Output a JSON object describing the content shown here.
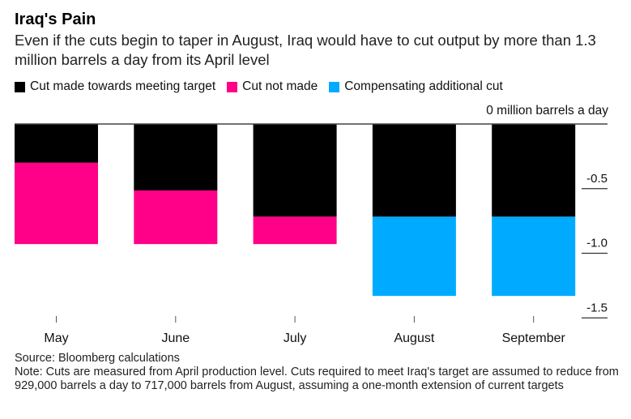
{
  "title": "Iraq's Pain",
  "subtitle": "Even if the cuts begin to taper in August, Iraq would have to cut output by more than 1.3 million barrels a day from its April level",
  "legend": [
    {
      "label": "Cut made towards meeting target",
      "color": "#000000"
    },
    {
      "label": "Cut not made",
      "color": "#ff0088"
    },
    {
      "label": "Compensating additional cut",
      "color": "#00aaff"
    }
  ],
  "source": "Source: Bloomberg calculations",
  "note": "Note: Cuts are measured from April production level. Cuts required to meet Iraq's target are assumed to reduce from 929,000 barrels a day to 717,000 barrels from August, assuming a one-month extension of current targets",
  "chart_data": {
    "type": "bar",
    "stacked": true,
    "orientation": "vertical-negative",
    "title": "Iraq's Pain",
    "ylabel": "0 million barrels a day",
    "ylim": [
      -1.5,
      0
    ],
    "yticks": [
      {
        "value": 0,
        "label": "0 million barrels a day"
      },
      {
        "value": -0.5,
        "label": "-0.5"
      },
      {
        "value": -1.0,
        "label": "-1.0"
      },
      {
        "value": -1.5,
        "label": "-1.5"
      }
    ],
    "categories": [
      "May",
      "June",
      "July",
      "August",
      "September"
    ],
    "series": [
      {
        "name": "Cut made towards meeting target",
        "color": "#000000",
        "values": [
          -0.3,
          -0.514,
          -0.717,
          -0.717,
          -0.717
        ]
      },
      {
        "name": "Cut not made",
        "color": "#ff0088",
        "values": [
          -0.629,
          -0.415,
          -0.212,
          0,
          0
        ]
      },
      {
        "name": "Compensating additional cut",
        "color": "#00aaff",
        "values": [
          0,
          0,
          0,
          -0.613,
          -0.613
        ]
      }
    ],
    "legend_position": "top-left",
    "grid": false
  }
}
